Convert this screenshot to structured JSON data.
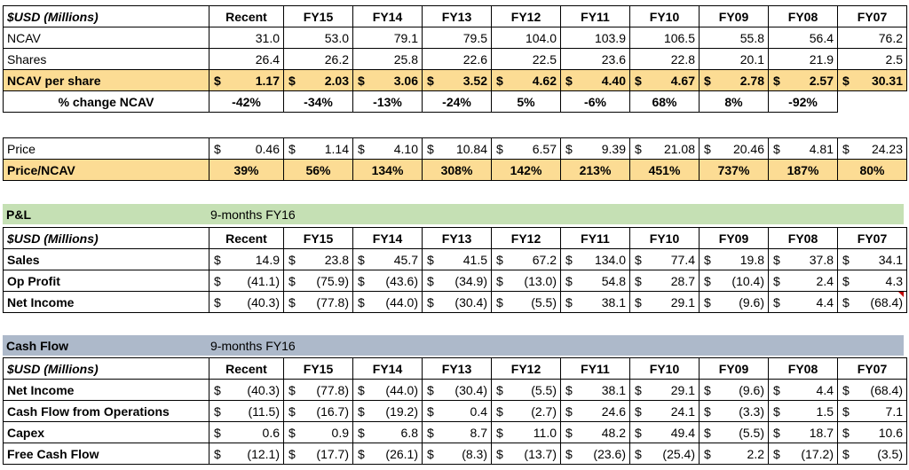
{
  "ncav": {
    "header": {
      "label": "$USD (Millions)",
      "cols": [
        "Recent",
        "FY15",
        "FY14",
        "FY13",
        "FY12",
        "FY11",
        "FY10",
        "FY09",
        "FY08",
        "FY07"
      ]
    },
    "rows": [
      {
        "label": "NCAV",
        "values": [
          "31.0",
          "53.0",
          "79.1",
          "79.5",
          "104.0",
          "103.9",
          "106.5",
          "55.8",
          "56.4",
          "76.2"
        ]
      },
      {
        "label": "Shares",
        "values": [
          "26.4",
          "26.2",
          "25.8",
          "22.6",
          "22.5",
          "23.6",
          "22.8",
          "20.1",
          "21.9",
          "2.5"
        ]
      }
    ],
    "per_share": {
      "label": "NCAV per share",
      "currency": "$",
      "values": [
        "1.17",
        "2.03",
        "3.06",
        "3.52",
        "4.62",
        "4.40",
        "4.67",
        "2.78",
        "2.57",
        "30.31"
      ]
    },
    "pct_change": {
      "label": "% change NCAV",
      "values": [
        "-42%",
        "-34%",
        "-13%",
        "-24%",
        "5%",
        "-6%",
        "68%",
        "8%",
        "-92%"
      ]
    }
  },
  "price": {
    "price_row": {
      "label": "Price",
      "currency": "$",
      "values": [
        "0.46",
        "1.14",
        "4.10",
        "10.84",
        "6.57",
        "9.39",
        "21.08",
        "20.46",
        "4.81",
        "24.23"
      ]
    },
    "ratio_row": {
      "label": "Price/NCAV",
      "values": [
        "39%",
        "56%",
        "134%",
        "308%",
        "142%",
        "213%",
        "451%",
        "737%",
        "187%",
        "80%"
      ]
    }
  },
  "pl": {
    "title": "P&L",
    "subtitle": "9-months FY16",
    "header": {
      "label": "$USD (Millions)",
      "cols": [
        "Recent",
        "FY15",
        "FY14",
        "FY13",
        "FY12",
        "FY11",
        "FY10",
        "FY09",
        "FY08",
        "FY07"
      ]
    },
    "currency": "$",
    "rows": [
      {
        "label": "Sales",
        "values": [
          "14.9",
          "23.8",
          "45.7",
          "41.5",
          "67.2",
          "134.0",
          "77.4",
          "19.8",
          "37.8",
          "34.1"
        ]
      },
      {
        "label": "Op Profit",
        "values": [
          "(41.1)",
          "(75.9)",
          "(43.6)",
          "(34.9)",
          "(13.0)",
          "54.8",
          "28.7",
          "(10.4)",
          "2.4",
          "4.3"
        ]
      },
      {
        "label": "Net Income",
        "values": [
          "(40.3)",
          "(77.8)",
          "(44.0)",
          "(30.4)",
          "(5.5)",
          "38.1",
          "29.1",
          "(9.6)",
          "4.4",
          "(68.4)"
        ]
      }
    ]
  },
  "cashflow": {
    "title": "Cash Flow",
    "subtitle": "9-months FY16",
    "header": {
      "label": "$USD (Millions)",
      "cols": [
        "Recent",
        "FY15",
        "FY14",
        "FY13",
        "FY12",
        "FY11",
        "FY10",
        "FY09",
        "FY08",
        "FY07"
      ]
    },
    "currency": "$",
    "rows": [
      {
        "label": "Net Income",
        "values": [
          "(40.3)",
          "(77.8)",
          "(44.0)",
          "(30.4)",
          "(5.5)",
          "38.1",
          "29.1",
          "(9.6)",
          "4.4",
          "(68.4)"
        ]
      },
      {
        "label": "Cash Flow from Operations",
        "values": [
          "(11.5)",
          "(16.7)",
          "(19.2)",
          "0.4",
          "(2.7)",
          "24.6",
          "24.1",
          "(3.3)",
          "1.5",
          "7.1"
        ]
      },
      {
        "label": "Capex",
        "values": [
          "0.6",
          "0.9",
          "6.8",
          "8.7",
          "11.0",
          "48.2",
          "49.4",
          "(5.5)",
          "18.7",
          "10.6"
        ]
      },
      {
        "label": "Free Cash Flow",
        "values": [
          "(12.1)",
          "(17.7)",
          "(26.1)",
          "(8.3)",
          "(13.7)",
          "(23.6)",
          "(25.4)",
          "2.2",
          "(17.2)",
          "(3.5)"
        ]
      }
    ]
  },
  "colors": {
    "highlight": "#fcdc94",
    "pl_band": "#c5e0b4",
    "cf_band": "#adb9ca",
    "comment_marker": "#c00000"
  }
}
